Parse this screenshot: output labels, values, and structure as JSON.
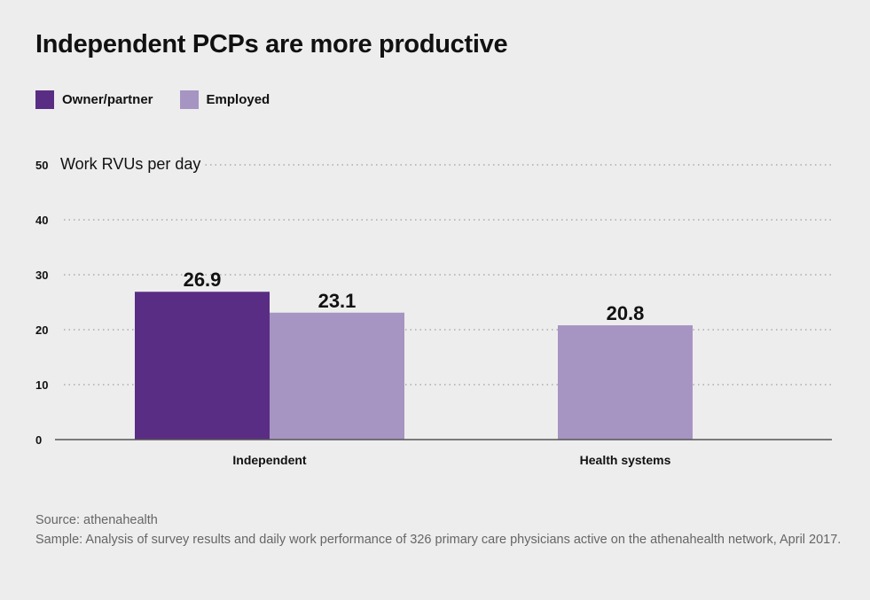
{
  "chart_data": {
    "type": "bar",
    "title": "Independent PCPs are more productive",
    "ylabel": "Work RVUs per day",
    "xlabel": "",
    "ylim": [
      0,
      50
    ],
    "yticks": [
      0,
      10,
      20,
      30,
      40,
      50
    ],
    "grid": true,
    "legend_position": "top-left",
    "categories": [
      "Independent",
      "Health systems"
    ],
    "series": [
      {
        "name": "Owner/partner",
        "color": "#5a2d84",
        "values": [
          26.9,
          null
        ]
      },
      {
        "name": "Employed",
        "color": "#a694c2",
        "values": [
          23.1,
          20.8
        ]
      }
    ]
  },
  "footer": {
    "source": "Source: athenahealth",
    "sample": "Sample: Analysis of survey results and daily work performance of 326 primary care physicians active on the athenahealth network, April 2017."
  }
}
